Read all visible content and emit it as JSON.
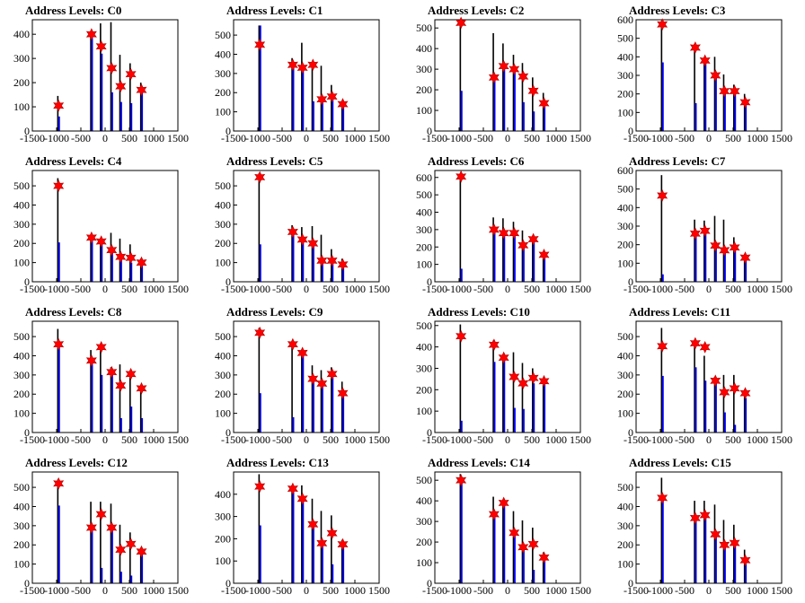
{
  "colors": {
    "background": "#ffffff",
    "bar_primary": "#0000ff",
    "bar_secondary": "#000000",
    "marker": "#ff0000",
    "marker_edge": "#b40000",
    "axis": "#000000"
  },
  "chart_data": [
    {
      "type": "bar",
      "title": "Address Levels: C0",
      "xlim": [
        -1500,
        1500
      ],
      "ylim": [
        0,
        460
      ],
      "xticks": [
        -1500,
        -1000,
        -500,
        0,
        500,
        1000,
        1500
      ],
      "yticks": [
        0,
        100,
        200,
        300,
        400
      ],
      "star_x": [
        -960,
        -280,
        -80,
        135,
        320,
        530,
        750
      ],
      "star_y": [
        105,
        400,
        350,
        260,
        185,
        235,
        170
      ],
      "blue_tops": [
        60,
        410,
        320,
        160,
        120,
        115,
        160
      ],
      "black_tops": [
        145,
        400,
        445,
        450,
        315,
        280,
        200
      ]
    },
    {
      "type": "bar",
      "title": "Address Levels: C1",
      "xlim": [
        -1500,
        1500
      ],
      "ylim": [
        0,
        580
      ],
      "xticks": [
        -1500,
        -1000,
        -500,
        0,
        500,
        1000,
        1500
      ],
      "yticks": [
        0,
        100,
        200,
        300,
        400,
        500
      ],
      "star_x": [
        -960,
        -280,
        -80,
        135,
        320,
        530,
        750
      ],
      "star_y": [
        450,
        345,
        330,
        345,
        165,
        180,
        140
      ],
      "blue_tops": [
        550,
        345,
        330,
        155,
        170,
        185,
        140
      ],
      "black_tops": [
        550,
        380,
        460,
        350,
        340,
        240,
        140
      ]
    },
    {
      "type": "bar",
      "title": "Address Levels: C2",
      "xlim": [
        -1500,
        1500
      ],
      "ylim": [
        0,
        540
      ],
      "xticks": [
        -1500,
        -1000,
        -500,
        0,
        500,
        1000,
        1500
      ],
      "yticks": [
        0,
        100,
        200,
        300,
        400,
        500
      ],
      "star_x": [
        -960,
        -280,
        -80,
        135,
        320,
        530,
        750
      ],
      "star_y": [
        525,
        260,
        315,
        300,
        265,
        195,
        135
      ],
      "blue_tops": [
        195,
        265,
        320,
        300,
        140,
        95,
        140
      ],
      "black_tops": [
        525,
        475,
        425,
        370,
        330,
        260,
        185
      ]
    },
    {
      "type": "bar",
      "title": "Address Levels: C3",
      "xlim": [
        -1500,
        1500
      ],
      "ylim": [
        0,
        600
      ],
      "xticks": [
        -1500,
        -1000,
        -500,
        0,
        500,
        1000,
        1500
      ],
      "yticks": [
        0,
        100,
        200,
        300,
        400,
        500,
        600
      ],
      "star_x": [
        -960,
        -280,
        -80,
        135,
        320,
        530,
        750
      ],
      "star_y": [
        575,
        450,
        380,
        300,
        215,
        215,
        155
      ],
      "blue_tops": [
        370,
        150,
        380,
        300,
        220,
        215,
        155
      ],
      "black_tops": [
        585,
        470,
        385,
        400,
        305,
        250,
        200
      ]
    },
    {
      "type": "bar",
      "title": "Address Levels: C4",
      "xlim": [
        -1500,
        1500
      ],
      "ylim": [
        0,
        580
      ],
      "xticks": [
        -1500,
        -1000,
        -500,
        0,
        500,
        1000,
        1500
      ],
      "yticks": [
        0,
        100,
        200,
        300,
        400,
        500
      ],
      "star_x": [
        -960,
        -280,
        -80,
        135,
        320,
        530,
        750
      ],
      "star_y": [
        500,
        230,
        210,
        165,
        130,
        125,
        100
      ],
      "blue_tops": [
        205,
        230,
        210,
        165,
        130,
        100,
        100
      ],
      "black_tops": [
        540,
        235,
        215,
        255,
        225,
        195,
        120
      ]
    },
    {
      "type": "bar",
      "title": "Address Levels: C5",
      "xlim": [
        -1500,
        1500
      ],
      "ylim": [
        0,
        580
      ],
      "xticks": [
        -1500,
        -1000,
        -500,
        0,
        500,
        1000,
        1500
      ],
      "yticks": [
        0,
        100,
        200,
        300,
        400,
        500
      ],
      "star_x": [
        -960,
        -280,
        -80,
        135,
        320,
        530,
        750
      ],
      "star_y": [
        545,
        260,
        220,
        200,
        110,
        110,
        90
      ],
      "blue_tops": [
        195,
        260,
        220,
        200,
        105,
        110,
        90
      ],
      "black_tops": [
        565,
        295,
        285,
        290,
        245,
        170,
        120
      ]
    },
    {
      "type": "bar",
      "title": "Address Levels: C6",
      "xlim": [
        -1500,
        1500
      ],
      "ylim": [
        0,
        640
      ],
      "xticks": [
        -1500,
        -1000,
        -500,
        0,
        500,
        1000,
        1500
      ],
      "yticks": [
        0,
        100,
        200,
        300,
        400,
        500,
        600
      ],
      "star_x": [
        -960,
        -280,
        -80,
        135,
        320,
        530,
        750
      ],
      "star_y": [
        605,
        300,
        280,
        280,
        210,
        245,
        155
      ],
      "blue_tops": [
        75,
        300,
        280,
        280,
        210,
        245,
        155
      ],
      "black_tops": [
        605,
        370,
        365,
        345,
        295,
        255,
        175
      ]
    },
    {
      "type": "bar",
      "title": "Address Levels: C7",
      "xlim": [
        -1500,
        1500
      ],
      "ylim": [
        0,
        600
      ],
      "xticks": [
        -1500,
        -1000,
        -500,
        0,
        500,
        1000,
        1500
      ],
      "yticks": [
        0,
        100,
        200,
        300,
        400,
        500,
        600
      ],
      "star_x": [
        -960,
        -280,
        -80,
        135,
        320,
        530,
        750
      ],
      "star_y": [
        465,
        260,
        275,
        195,
        170,
        185,
        130
      ],
      "blue_tops": [
        40,
        260,
        275,
        195,
        170,
        185,
        130
      ],
      "black_tops": [
        575,
        335,
        330,
        355,
        335,
        240,
        150
      ]
    },
    {
      "type": "bar",
      "title": "Address Levels: C8",
      "xlim": [
        -1500,
        1500
      ],
      "ylim": [
        0,
        580
      ],
      "xticks": [
        -1500,
        -1000,
        -500,
        0,
        500,
        1000,
        1500
      ],
      "yticks": [
        0,
        100,
        200,
        300,
        400,
        500
      ],
      "star_x": [
        -960,
        -280,
        -80,
        135,
        320,
        530,
        750
      ],
      "star_y": [
        460,
        375,
        445,
        315,
        245,
        305,
        230
      ],
      "blue_tops": [
        460,
        375,
        300,
        310,
        75,
        135,
        75
      ],
      "black_tops": [
        540,
        430,
        450,
        340,
        355,
        320,
        245
      ]
    },
    {
      "type": "bar",
      "title": "Address Levels: C9",
      "xlim": [
        -1500,
        1500
      ],
      "ylim": [
        0,
        580
      ],
      "xticks": [
        -1500,
        -1000,
        -500,
        0,
        500,
        1000,
        1500
      ],
      "yticks": [
        0,
        100,
        200,
        300,
        400,
        500
      ],
      "star_x": [
        -960,
        -280,
        -80,
        135,
        320,
        530,
        750
      ],
      "star_y": [
        520,
        460,
        415,
        280,
        255,
        305,
        205
      ],
      "blue_tops": [
        205,
        80,
        415,
        280,
        255,
        300,
        205
      ],
      "black_tops": [
        545,
        455,
        430,
        350,
        325,
        340,
        265
      ]
    },
    {
      "type": "bar",
      "title": "Address Levels: C10",
      "xlim": [
        -1500,
        1500
      ],
      "ylim": [
        0,
        520
      ],
      "xticks": [
        -1500,
        -1000,
        -500,
        0,
        500,
        1000,
        1500
      ],
      "yticks": [
        0,
        100,
        200,
        300,
        400,
        500
      ],
      "star_x": [
        -960,
        -280,
        -80,
        135,
        320,
        530,
        750
      ],
      "star_y": [
        450,
        410,
        350,
        260,
        230,
        255,
        240
      ],
      "blue_tops": [
        55,
        330,
        350,
        115,
        110,
        230,
        230
      ],
      "black_tops": [
        505,
        430,
        355,
        375,
        325,
        300,
        250
      ]
    },
    {
      "type": "bar",
      "title": "Address Levels: C11",
      "xlim": [
        -1500,
        1500
      ],
      "ylim": [
        0,
        580
      ],
      "xticks": [
        -1500,
        -1000,
        -500,
        0,
        500,
        1000,
        1500
      ],
      "yticks": [
        0,
        100,
        200,
        300,
        400,
        500
      ],
      "star_x": [
        -960,
        -280,
        -80,
        135,
        320,
        530,
        750
      ],
      "star_y": [
        450,
        465,
        445,
        270,
        210,
        230,
        205
      ],
      "blue_tops": [
        295,
        340,
        270,
        270,
        105,
        40,
        180
      ],
      "black_tops": [
        545,
        470,
        400,
        290,
        300,
        300,
        210
      ]
    },
    {
      "type": "bar",
      "title": "Address Levels: C12",
      "xlim": [
        -1500,
        1500
      ],
      "ylim": [
        0,
        580
      ],
      "xticks": [
        -1500,
        -1000,
        -500,
        0,
        500,
        1000,
        1500
      ],
      "yticks": [
        0,
        100,
        200,
        300,
        400,
        500
      ],
      "star_x": [
        -960,
        -280,
        -80,
        135,
        320,
        530,
        750
      ],
      "star_y": [
        520,
        290,
        360,
        290,
        175,
        205,
        165
      ],
      "blue_tops": [
        405,
        290,
        80,
        290,
        60,
        40,
        165
      ],
      "black_tops": [
        540,
        425,
        425,
        415,
        305,
        265,
        185
      ]
    },
    {
      "type": "bar",
      "title": "Address Levels: C13",
      "xlim": [
        -1500,
        1500
      ],
      "ylim": [
        0,
        500
      ],
      "xticks": [
        -1500,
        -1000,
        -500,
        0,
        500,
        1000,
        1500
      ],
      "yticks": [
        0,
        100,
        200,
        300,
        400
      ],
      "star_x": [
        -960,
        -280,
        -80,
        135,
        320,
        530,
        750
      ],
      "star_y": [
        435,
        425,
        380,
        265,
        180,
        225,
        175
      ],
      "blue_tops": [
        260,
        425,
        380,
        265,
        180,
        85,
        175
      ],
      "black_tops": [
        490,
        440,
        440,
        380,
        325,
        305,
        195
      ]
    },
    {
      "type": "bar",
      "title": "Address Levels: C14",
      "xlim": [
        -1500,
        1500
      ],
      "ylim": [
        0,
        540
      ],
      "xticks": [
        -1500,
        -1000,
        -500,
        0,
        500,
        1000,
        1500
      ],
      "yticks": [
        0,
        100,
        200,
        300,
        400,
        500
      ],
      "star_x": [
        -960,
        -280,
        -80,
        135,
        320,
        530,
        750
      ],
      "star_y": [
        500,
        335,
        390,
        245,
        175,
        190,
        125
      ],
      "blue_tops": [
        495,
        330,
        390,
        245,
        175,
        65,
        125
      ],
      "black_tops": [
        530,
        420,
        400,
        350,
        305,
        270,
        150
      ]
    },
    {
      "type": "bar",
      "title": "Address Levels: C15",
      "xlim": [
        -1500,
        1500
      ],
      "ylim": [
        0,
        580
      ],
      "xticks": [
        -1500,
        -1000,
        -500,
        0,
        500,
        1000,
        1500
      ],
      "yticks": [
        0,
        100,
        200,
        300,
        400,
        500
      ],
      "star_x": [
        -960,
        -280,
        -80,
        135,
        320,
        530,
        750
      ],
      "star_y": [
        445,
        340,
        355,
        255,
        200,
        210,
        120
      ],
      "blue_tops": [
        445,
        340,
        355,
        255,
        200,
        210,
        100
      ],
      "black_tops": [
        550,
        430,
        430,
        410,
        330,
        305,
        175
      ]
    }
  ]
}
